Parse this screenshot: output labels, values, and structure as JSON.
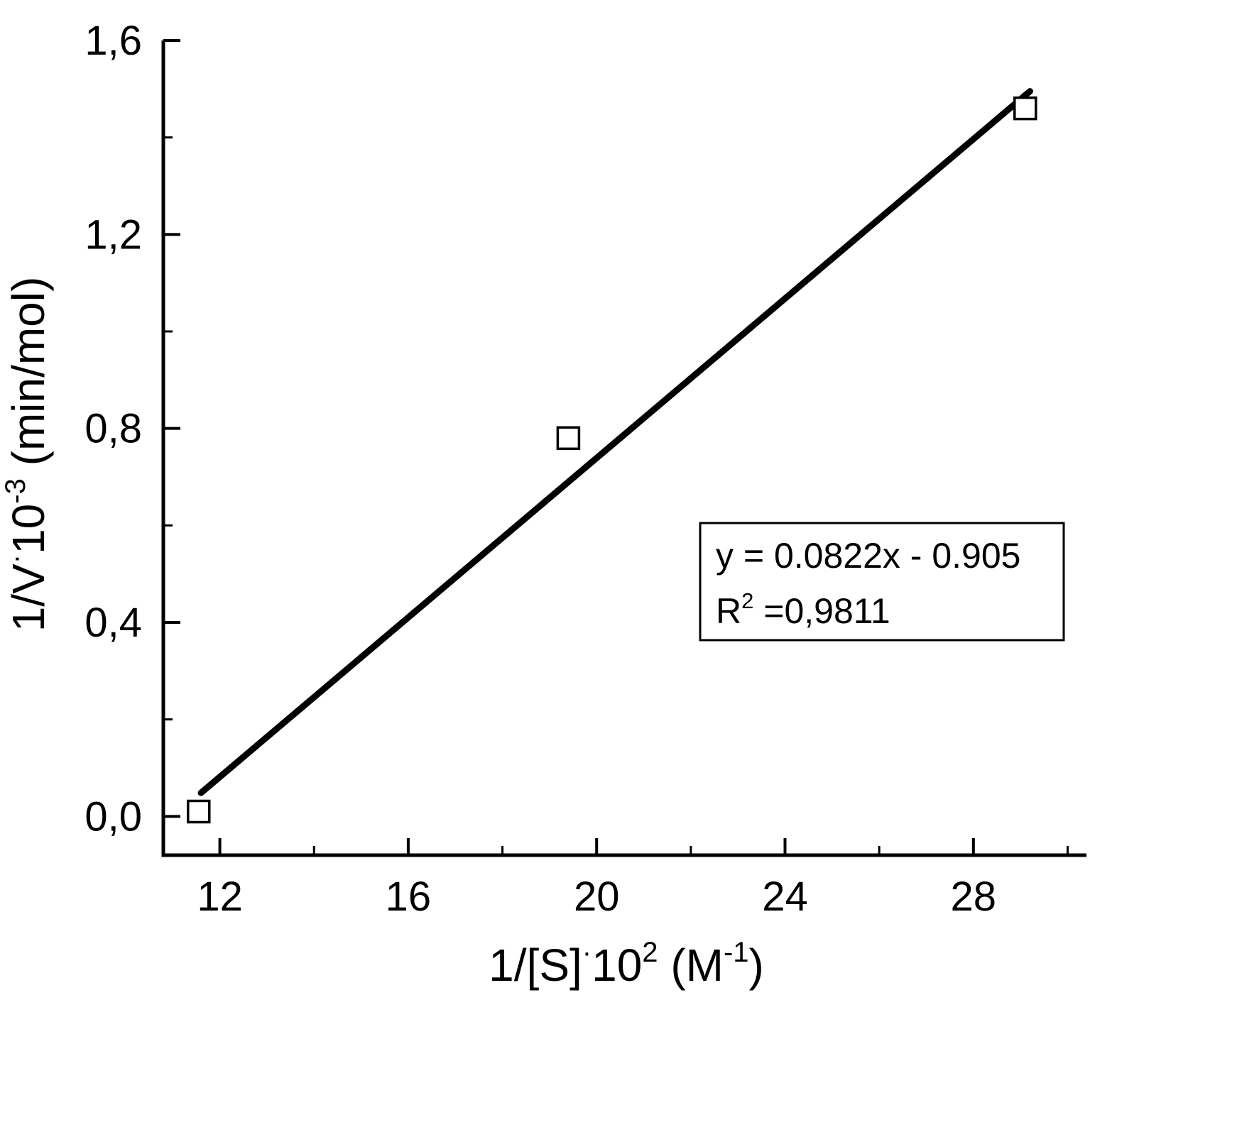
{
  "chart_data": {
    "type": "scatter",
    "title": "",
    "xlabel": "1/[S]^{·}10^{2} (M^{-1})",
    "ylabel": "1/V^{·}10^{-3} (min/mol)",
    "x": [
      11.55,
      19.4,
      29.1
    ],
    "y": [
      0.01,
      0.78,
      1.46
    ],
    "xlim": [
      10.8,
      30.4
    ],
    "ylim": [
      -0.08,
      1.6
    ],
    "xticks": [
      12,
      16,
      20,
      24,
      28
    ],
    "xminor": [
      14,
      18,
      22,
      26,
      30
    ],
    "ytick_labels": [
      "0,0",
      "0,4",
      "0,8",
      "1,2",
      "1,6"
    ],
    "ytick_values": [
      0.0,
      0.4,
      0.8,
      1.2,
      1.6
    ],
    "yminor": [
      0.2,
      0.6,
      1.0,
      1.4
    ],
    "fit_line": {
      "slope": 0.0822,
      "intercept": -0.905,
      "x_start": 11.6,
      "x_end": 29.2,
      "equation": "y = 0.0822x - 0.905",
      "r_squared_label": "R^{2} =0,9811"
    },
    "marker": "open-square",
    "grid": false,
    "legend": null,
    "colors": {
      "axis": "#000000",
      "line": "#000000",
      "marker_stroke": "#000000",
      "marker_fill": "#ffffff",
      "background": "#ffffff"
    }
  }
}
